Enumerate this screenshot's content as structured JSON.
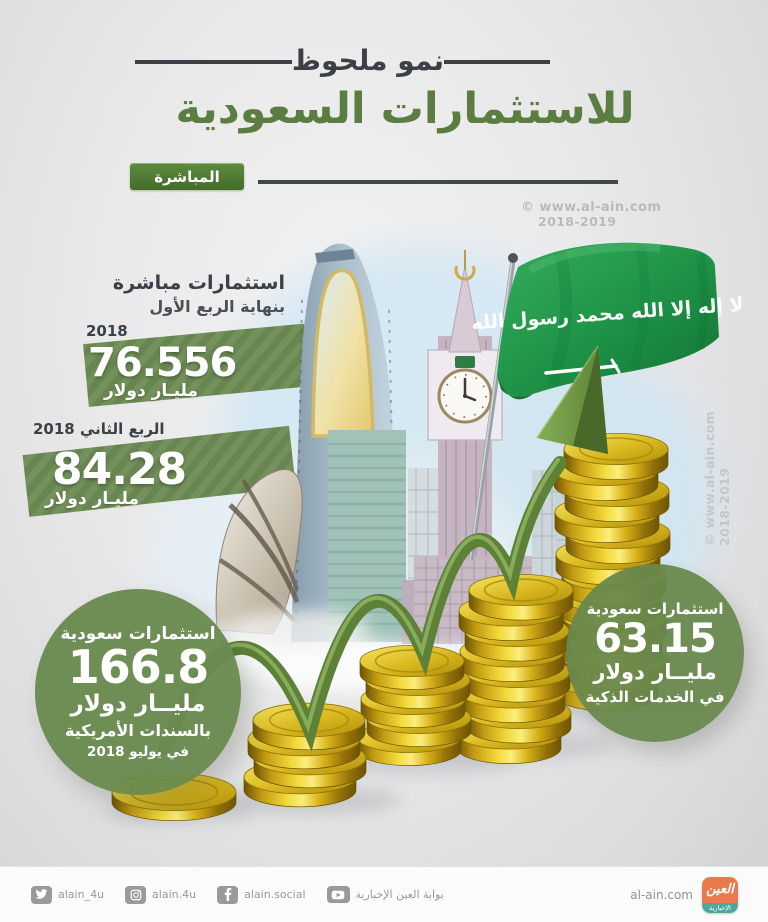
{
  "header": {
    "kicker": "نمو ملحوظ",
    "title": "للاستثمارات السعودية",
    "badge": "المباشرة"
  },
  "q1": {
    "intro1": "استثمارات مباشرة",
    "intro2": "بنهاية الربع الأول",
    "year": "2018",
    "value": "76.556",
    "unit": "مليـار دولار"
  },
  "q2": {
    "label": "الربع الثاني 2018",
    "value": "84.28",
    "unit": "مليـار دولار"
  },
  "bonds_bubble": {
    "label": "استثمارات سعودية",
    "value": "166.8",
    "unit": "مليــار دولار",
    "note": "بالسندات الأمريكية",
    "date": "في يوليو 2018"
  },
  "smart_bubble": {
    "label": "استثمارات سعودية",
    "value": "63.15",
    "unit": "مليــار دولار",
    "note": "في الخدمات الذكية"
  },
  "flag": {
    "shahada": "لا إله إلا الله محمد رسول الله"
  },
  "watermarks": {
    "top1": "© www.al-ain.com",
    "top2": "2018-2019",
    "side1": "© www.al-ain.com",
    "side2": "2018-2019"
  },
  "footer": {
    "twitter": "alain_4u",
    "instagram": "alain.4u",
    "facebook": "alain.social",
    "youtube": "بوابة العين الإخبارية",
    "site": "al-ain.com",
    "logo_top": "العين",
    "logo_bottom": "الإخبارية"
  },
  "icons": {
    "twitter": "twitter-bird",
    "instagram": "camera-outline",
    "facebook": "letter-f",
    "youtube": "play-button"
  },
  "colors": {
    "accent_green": "#5c7d41",
    "badge_green": "#446c27",
    "banner_green": "#74915b",
    "bubble_green": "#6a8a4f",
    "flag_green": "#1f9447",
    "coin_gold": "#d8b71e",
    "logo_orange": "#e87a4e",
    "logo_teal": "#4ea6a0"
  },
  "chart_data": {
    "type": "bar",
    "title": "نمو ملحوظ للاستثمارات السعودية المباشرة",
    "categories": [
      "بنهاية الربع الأول 2018",
      "الربع الثاني 2018"
    ],
    "values": [
      76.556,
      84.28
    ],
    "unit": "مليار دولار",
    "legend_position": "none",
    "annotations": [
      {
        "label": "استثمارات سعودية بالسندات الأمريكية في يوليو 2018",
        "value": 166.8,
        "unit": "مليار دولار"
      },
      {
        "label": "استثمارات سعودية في الخدمات الذكية",
        "value": 63.15,
        "unit": "مليار دولار"
      }
    ]
  }
}
